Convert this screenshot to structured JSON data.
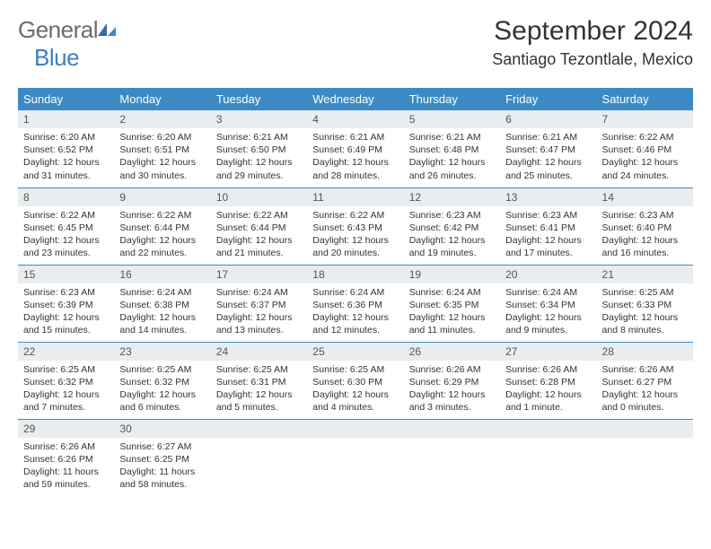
{
  "logo": {
    "text_gray": "General",
    "text_blue": "Blue"
  },
  "title": "September 2024",
  "location": "Santiago Tezontlale, Mexico",
  "colors": {
    "header_bg": "#3b8ac4",
    "header_text": "#ffffff",
    "daynum_bg": "#e9edef",
    "border": "#3b8ac4",
    "logo_gray": "#6b6b6b",
    "logo_blue": "#3b7fc4",
    "body_text": "#333333"
  },
  "weekdays": [
    "Sunday",
    "Monday",
    "Tuesday",
    "Wednesday",
    "Thursday",
    "Friday",
    "Saturday"
  ],
  "weeks": [
    [
      {
        "n": "1",
        "sr": "Sunrise: 6:20 AM",
        "ss": "Sunset: 6:52 PM",
        "dl1": "Daylight: 12 hours",
        "dl2": "and 31 minutes."
      },
      {
        "n": "2",
        "sr": "Sunrise: 6:20 AM",
        "ss": "Sunset: 6:51 PM",
        "dl1": "Daylight: 12 hours",
        "dl2": "and 30 minutes."
      },
      {
        "n": "3",
        "sr": "Sunrise: 6:21 AM",
        "ss": "Sunset: 6:50 PM",
        "dl1": "Daylight: 12 hours",
        "dl2": "and 29 minutes."
      },
      {
        "n": "4",
        "sr": "Sunrise: 6:21 AM",
        "ss": "Sunset: 6:49 PM",
        "dl1": "Daylight: 12 hours",
        "dl2": "and 28 minutes."
      },
      {
        "n": "5",
        "sr": "Sunrise: 6:21 AM",
        "ss": "Sunset: 6:48 PM",
        "dl1": "Daylight: 12 hours",
        "dl2": "and 26 minutes."
      },
      {
        "n": "6",
        "sr": "Sunrise: 6:21 AM",
        "ss": "Sunset: 6:47 PM",
        "dl1": "Daylight: 12 hours",
        "dl2": "and 25 minutes."
      },
      {
        "n": "7",
        "sr": "Sunrise: 6:22 AM",
        "ss": "Sunset: 6:46 PM",
        "dl1": "Daylight: 12 hours",
        "dl2": "and 24 minutes."
      }
    ],
    [
      {
        "n": "8",
        "sr": "Sunrise: 6:22 AM",
        "ss": "Sunset: 6:45 PM",
        "dl1": "Daylight: 12 hours",
        "dl2": "and 23 minutes."
      },
      {
        "n": "9",
        "sr": "Sunrise: 6:22 AM",
        "ss": "Sunset: 6:44 PM",
        "dl1": "Daylight: 12 hours",
        "dl2": "and 22 minutes."
      },
      {
        "n": "10",
        "sr": "Sunrise: 6:22 AM",
        "ss": "Sunset: 6:44 PM",
        "dl1": "Daylight: 12 hours",
        "dl2": "and 21 minutes."
      },
      {
        "n": "11",
        "sr": "Sunrise: 6:22 AM",
        "ss": "Sunset: 6:43 PM",
        "dl1": "Daylight: 12 hours",
        "dl2": "and 20 minutes."
      },
      {
        "n": "12",
        "sr": "Sunrise: 6:23 AM",
        "ss": "Sunset: 6:42 PM",
        "dl1": "Daylight: 12 hours",
        "dl2": "and 19 minutes."
      },
      {
        "n": "13",
        "sr": "Sunrise: 6:23 AM",
        "ss": "Sunset: 6:41 PM",
        "dl1": "Daylight: 12 hours",
        "dl2": "and 17 minutes."
      },
      {
        "n": "14",
        "sr": "Sunrise: 6:23 AM",
        "ss": "Sunset: 6:40 PM",
        "dl1": "Daylight: 12 hours",
        "dl2": "and 16 minutes."
      }
    ],
    [
      {
        "n": "15",
        "sr": "Sunrise: 6:23 AM",
        "ss": "Sunset: 6:39 PM",
        "dl1": "Daylight: 12 hours",
        "dl2": "and 15 minutes."
      },
      {
        "n": "16",
        "sr": "Sunrise: 6:24 AM",
        "ss": "Sunset: 6:38 PM",
        "dl1": "Daylight: 12 hours",
        "dl2": "and 14 minutes."
      },
      {
        "n": "17",
        "sr": "Sunrise: 6:24 AM",
        "ss": "Sunset: 6:37 PM",
        "dl1": "Daylight: 12 hours",
        "dl2": "and 13 minutes."
      },
      {
        "n": "18",
        "sr": "Sunrise: 6:24 AM",
        "ss": "Sunset: 6:36 PM",
        "dl1": "Daylight: 12 hours",
        "dl2": "and 12 minutes."
      },
      {
        "n": "19",
        "sr": "Sunrise: 6:24 AM",
        "ss": "Sunset: 6:35 PM",
        "dl1": "Daylight: 12 hours",
        "dl2": "and 11 minutes."
      },
      {
        "n": "20",
        "sr": "Sunrise: 6:24 AM",
        "ss": "Sunset: 6:34 PM",
        "dl1": "Daylight: 12 hours",
        "dl2": "and 9 minutes."
      },
      {
        "n": "21",
        "sr": "Sunrise: 6:25 AM",
        "ss": "Sunset: 6:33 PM",
        "dl1": "Daylight: 12 hours",
        "dl2": "and 8 minutes."
      }
    ],
    [
      {
        "n": "22",
        "sr": "Sunrise: 6:25 AM",
        "ss": "Sunset: 6:32 PM",
        "dl1": "Daylight: 12 hours",
        "dl2": "and 7 minutes."
      },
      {
        "n": "23",
        "sr": "Sunrise: 6:25 AM",
        "ss": "Sunset: 6:32 PM",
        "dl1": "Daylight: 12 hours",
        "dl2": "and 6 minutes."
      },
      {
        "n": "24",
        "sr": "Sunrise: 6:25 AM",
        "ss": "Sunset: 6:31 PM",
        "dl1": "Daylight: 12 hours",
        "dl2": "and 5 minutes."
      },
      {
        "n": "25",
        "sr": "Sunrise: 6:25 AM",
        "ss": "Sunset: 6:30 PM",
        "dl1": "Daylight: 12 hours",
        "dl2": "and 4 minutes."
      },
      {
        "n": "26",
        "sr": "Sunrise: 6:26 AM",
        "ss": "Sunset: 6:29 PM",
        "dl1": "Daylight: 12 hours",
        "dl2": "and 3 minutes."
      },
      {
        "n": "27",
        "sr": "Sunrise: 6:26 AM",
        "ss": "Sunset: 6:28 PM",
        "dl1": "Daylight: 12 hours",
        "dl2": "and 1 minute."
      },
      {
        "n": "28",
        "sr": "Sunrise: 6:26 AM",
        "ss": "Sunset: 6:27 PM",
        "dl1": "Daylight: 12 hours",
        "dl2": "and 0 minutes."
      }
    ],
    [
      {
        "n": "29",
        "sr": "Sunrise: 6:26 AM",
        "ss": "Sunset: 6:26 PM",
        "dl1": "Daylight: 11 hours",
        "dl2": "and 59 minutes."
      },
      {
        "n": "30",
        "sr": "Sunrise: 6:27 AM",
        "ss": "Sunset: 6:25 PM",
        "dl1": "Daylight: 11 hours",
        "dl2": "and 58 minutes."
      },
      null,
      null,
      null,
      null,
      null
    ]
  ]
}
